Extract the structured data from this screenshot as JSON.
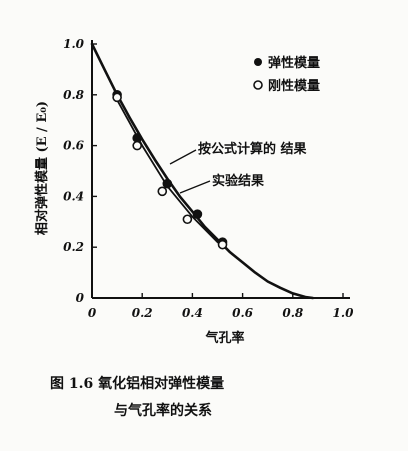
{
  "chart_data": {
    "type": "scatter",
    "xlabel": "气孔率",
    "ylabel": "相对弹性模量 (E / E₀)",
    "xlim": [
      0,
      1.0
    ],
    "ylim": [
      0,
      1.0
    ],
    "x_ticks": [
      "0",
      "0.2",
      "0.4",
      "0.6",
      "0.8",
      "1.0"
    ],
    "y_ticks": [
      "0",
      "0.2",
      "0.4",
      "0.6",
      "0.8",
      "1.0"
    ],
    "grid": false,
    "legend_position": "top-right",
    "series": [
      {
        "name": "弹性模量",
        "marker": "filled-circle",
        "x": [
          0.1,
          0.18,
          0.3,
          0.42,
          0.52
        ],
        "y": [
          0.8,
          0.63,
          0.45,
          0.33,
          0.22
        ]
      },
      {
        "name": "刚性模量",
        "marker": "open-circle",
        "x": [
          0.1,
          0.18,
          0.28,
          0.38,
          0.52
        ],
        "y": [
          0.79,
          0.6,
          0.42,
          0.31,
          0.21
        ]
      }
    ],
    "lines": [
      {
        "label": "按公式计算的 结果",
        "x": [
          0,
          0.05,
          0.1,
          0.15,
          0.2,
          0.25,
          0.3,
          0.35,
          0.4,
          0.45,
          0.5,
          0.55,
          0.6,
          0.65,
          0.7,
          0.75,
          0.8,
          0.85,
          0.88
        ],
        "y": [
          1.0,
          0.9,
          0.8,
          0.71,
          0.625,
          0.545,
          0.47,
          0.4,
          0.34,
          0.28,
          0.23,
          0.18,
          0.14,
          0.1,
          0.065,
          0.04,
          0.018,
          0.004,
          0.0
        ]
      },
      {
        "label": "实验结果",
        "x": [
          0.1,
          0.2,
          0.3,
          0.4,
          0.5,
          0.52
        ],
        "y": [
          0.78,
          0.6,
          0.44,
          0.32,
          0.22,
          0.205
        ]
      }
    ],
    "caption_line1": "图 1.6    氧化铝相对弹性模量",
    "caption_line2": "与气孔率的关系"
  }
}
